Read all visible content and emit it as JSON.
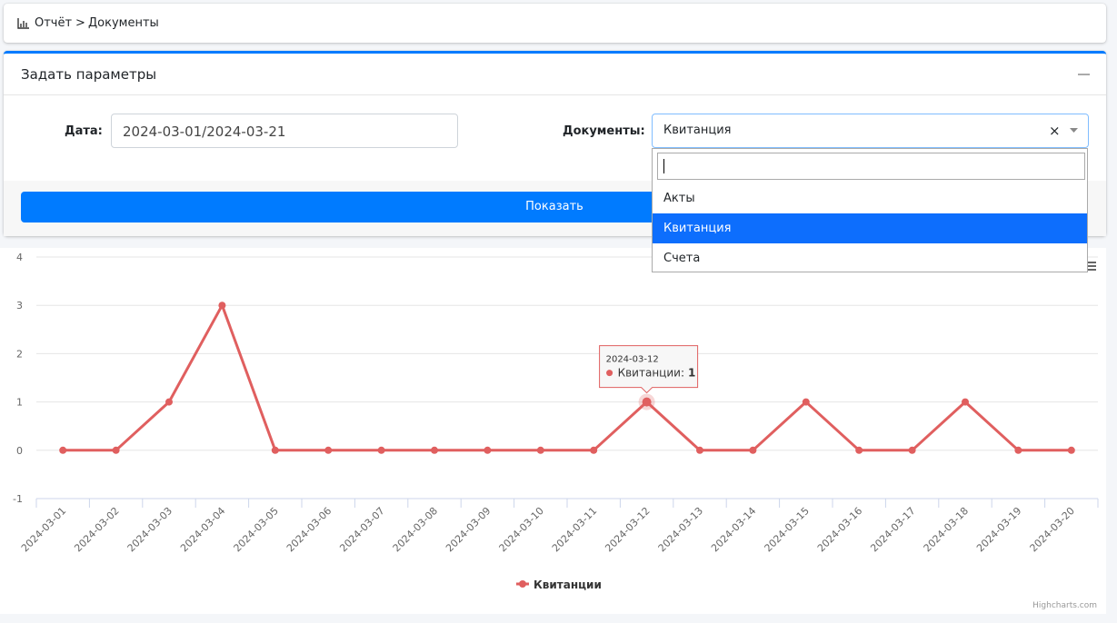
{
  "breadcrumb": {
    "items": [
      "Отчёт",
      "Документы"
    ],
    "separator": ">"
  },
  "panel": {
    "title": "Задать параметры",
    "date_label": "Дата:",
    "date_value": "2024-03-01/2024-03-21",
    "documents_label": "Документы:",
    "documents_value": "Квитанция",
    "button": "Показать"
  },
  "dropdown": {
    "options": [
      "Акты",
      "Квитанция",
      "Счета"
    ],
    "selected": 1
  },
  "chart_data": {
    "type": "line",
    "categories": [
      "2024-03-01",
      "2024-03-02",
      "2024-03-03",
      "2024-03-04",
      "2024-03-05",
      "2024-03-06",
      "2024-03-07",
      "2024-03-08",
      "2024-03-09",
      "2024-03-10",
      "2024-03-11",
      "2024-03-12",
      "2024-03-13",
      "2024-03-14",
      "2024-03-15",
      "2024-03-16",
      "2024-03-17",
      "2024-03-18",
      "2024-03-19",
      "2024-03-20"
    ],
    "series": [
      {
        "name": "Квитанции",
        "color": "#e05f5f",
        "values": [
          0,
          0,
          1,
          3,
          0,
          0,
          0,
          0,
          0,
          0,
          0,
          1,
          0,
          0,
          1,
          0,
          0,
          1,
          0,
          0
        ]
      }
    ],
    "ylim": [
      -1,
      4
    ],
    "yticks": [
      -1,
      0,
      1,
      2,
      3,
      4
    ],
    "grid": true,
    "tooltip": {
      "index": 11,
      "series_label": "Квитанции:"
    },
    "legend": "bottom"
  },
  "credits": "Highcharts.com"
}
